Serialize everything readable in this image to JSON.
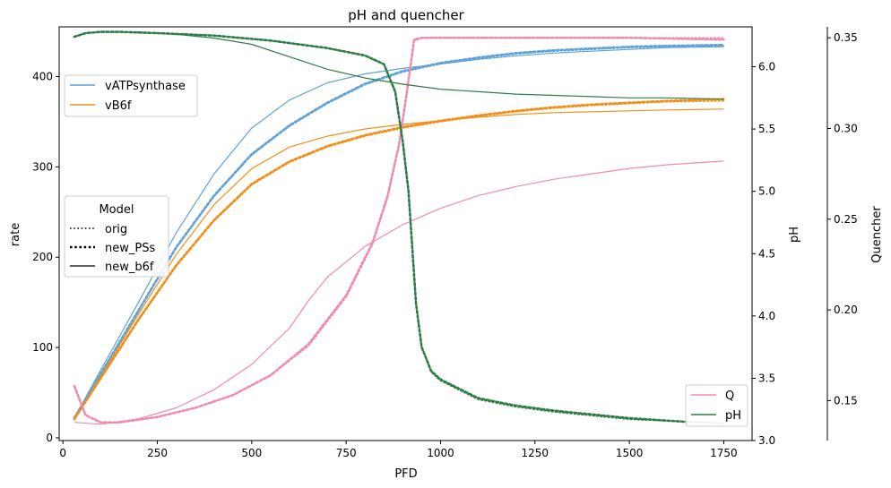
{
  "chart_data": {
    "type": "line",
    "title": "pH and quencher",
    "xlabel": "PFD",
    "x_axis": {
      "lim": [
        -10,
        1825
      ],
      "ticks": [
        0,
        250,
        500,
        750,
        1000,
        1250,
        1500,
        1750
      ]
    },
    "axes": {
      "rate": {
        "label": "rate",
        "lim": [
          -3,
          455
        ],
        "ticks": [
          0,
          100,
          200,
          300,
          400
        ]
      },
      "pH": {
        "label": "pH",
        "lim": [
          3.0,
          6.32
        ],
        "ticks": [
          3.0,
          3.5,
          4.0,
          4.5,
          5.0,
          5.5,
          6.0
        ]
      },
      "quencher": {
        "label": "Quencher",
        "lim": [
          0.128,
          0.356
        ],
        "ticks": [
          0.15,
          0.2,
          0.25,
          0.3,
          0.35
        ]
      }
    },
    "legends": {
      "rates": {
        "placement": "upper-left",
        "entries": [
          {
            "label": "vATPsynthase",
            "color": "#5fa2d8"
          },
          {
            "label": "vB6f",
            "color": "#f28e16"
          }
        ]
      },
      "model": {
        "title": "Model",
        "placement": "center-left",
        "entries": [
          {
            "label": "orig",
            "style": "dotted"
          },
          {
            "label": "new_PSs",
            "style": "dotted-bold"
          },
          {
            "label": "new_b6f",
            "style": "solid"
          }
        ]
      },
      "quench_ph": {
        "placement": "lower-right",
        "entries": [
          {
            "label": "Q",
            "color": "#ef8bb0"
          },
          {
            "label": "pH",
            "color": "#2e7d46"
          }
        ]
      }
    },
    "series": [
      {
        "name": "vATPsynthase",
        "model": "orig",
        "axis": "rate",
        "color": "#5fa2d8",
        "style": "dotted",
        "x": [
          30,
          100,
          200,
          300,
          400,
          500,
          600,
          700,
          800,
          900,
          1000,
          1100,
          1200,
          1300,
          1400,
          1500,
          1600,
          1750
        ],
        "y": [
          22,
          70,
          140,
          210,
          267,
          313,
          345,
          370,
          391,
          405,
          414,
          420,
          425,
          428,
          430,
          432,
          433,
          434
        ]
      },
      {
        "name": "vATPsynthase",
        "model": "new_PSs",
        "axis": "rate",
        "color": "#5fa2d8",
        "style": "dotted-bold",
        "x": [
          30,
          100,
          200,
          300,
          400,
          500,
          600,
          700,
          800,
          900,
          1000,
          1100,
          1200,
          1300,
          1400,
          1500,
          1600,
          1750
        ],
        "y": [
          22,
          71,
          141,
          211,
          268,
          314,
          346,
          371,
          392,
          406,
          415,
          421,
          426,
          429,
          431,
          433,
          434,
          435
        ]
      },
      {
        "name": "vATPsynthase",
        "model": "new_b6f",
        "axis": "rate",
        "color": "#5fa2d8",
        "style": "solid",
        "x": [
          30,
          100,
          200,
          300,
          400,
          500,
          600,
          700,
          800,
          900,
          1000,
          1100,
          1200,
          1300,
          1400,
          1500,
          1600,
          1750
        ],
        "y": [
          22,
          75,
          150,
          227,
          292,
          343,
          374,
          393,
          403,
          409,
          414,
          419,
          423,
          426,
          428,
          430,
          432,
          433
        ]
      },
      {
        "name": "vB6f",
        "model": "orig",
        "axis": "rate",
        "color": "#f28e16",
        "style": "dotted",
        "x": [
          30,
          100,
          200,
          300,
          400,
          500,
          600,
          700,
          800,
          900,
          1000,
          1100,
          1200,
          1300,
          1400,
          1500,
          1600,
          1750
        ],
        "y": [
          20,
          65,
          130,
          190,
          240,
          280,
          305,
          322,
          334,
          343,
          350,
          356,
          361,
          365,
          368,
          370,
          372,
          373
        ]
      },
      {
        "name": "vB6f",
        "model": "new_PSs",
        "axis": "rate",
        "color": "#f28e16",
        "style": "dotted-bold",
        "x": [
          30,
          100,
          200,
          300,
          400,
          500,
          600,
          700,
          800,
          900,
          1000,
          1100,
          1200,
          1300,
          1400,
          1500,
          1600,
          1750
        ],
        "y": [
          21,
          66,
          131,
          191,
          241,
          281,
          306,
          323,
          335,
          344,
          351,
          357,
          362,
          366,
          369,
          371,
          373,
          375
        ]
      },
      {
        "name": "vB6f",
        "model": "new_b6f",
        "axis": "rate",
        "color": "#f28e16",
        "style": "solid",
        "x": [
          30,
          100,
          200,
          300,
          400,
          500,
          600,
          700,
          800,
          900,
          1000,
          1100,
          1200,
          1300,
          1400,
          1500,
          1600,
          1750
        ],
        "y": [
          20,
          68,
          137,
          203,
          258,
          298,
          322,
          334,
          342,
          347,
          351,
          355,
          358,
          360,
          361,
          362,
          363,
          364
        ]
      },
      {
        "name": "Q",
        "model": "orig",
        "axis": "quencher",
        "color": "#ef8bb0",
        "style": "dotted",
        "x": [
          30,
          60,
          100,
          150,
          250,
          350,
          450,
          550,
          650,
          750,
          820,
          860,
          890,
          910,
          930,
          950,
          1000,
          1200,
          1500,
          1750
        ],
        "y": [
          0.158,
          0.142,
          0.138,
          0.138,
          0.141,
          0.146,
          0.153,
          0.164,
          0.18,
          0.207,
          0.236,
          0.262,
          0.29,
          0.318,
          0.348,
          0.35,
          0.35,
          0.35,
          0.35,
          0.35
        ]
      },
      {
        "name": "Q",
        "model": "new_PSs",
        "axis": "quencher",
        "color": "#ef8bb0",
        "style": "dotted-bold",
        "x": [
          30,
          60,
          100,
          150,
          250,
          350,
          450,
          550,
          650,
          750,
          820,
          860,
          890,
          910,
          930,
          950,
          1000,
          1200,
          1500,
          1750
        ],
        "y": [
          0.158,
          0.142,
          0.138,
          0.138,
          0.141,
          0.146,
          0.153,
          0.164,
          0.181,
          0.208,
          0.237,
          0.263,
          0.291,
          0.319,
          0.349,
          0.35,
          0.35,
          0.35,
          0.35,
          0.349
        ]
      },
      {
        "name": "Q",
        "model": "new_b6f",
        "axis": "quencher",
        "color": "#ef8bb0",
        "style": "solid",
        "x": [
          30,
          100,
          200,
          300,
          400,
          500,
          600,
          650,
          700,
          800,
          900,
          1000,
          1100,
          1200,
          1300,
          1400,
          1500,
          1600,
          1750
        ],
        "y": [
          0.138,
          0.137,
          0.14,
          0.146,
          0.156,
          0.17,
          0.19,
          0.205,
          0.218,
          0.235,
          0.247,
          0.256,
          0.263,
          0.268,
          0.272,
          0.275,
          0.278,
          0.28,
          0.282
        ]
      },
      {
        "name": "pH",
        "model": "orig",
        "axis": "pH",
        "color": "#2e7d46",
        "style": "dotted",
        "x": [
          30,
          60,
          100,
          150,
          250,
          400,
          550,
          700,
          800,
          850,
          880,
          900,
          915,
          925,
          935,
          950,
          975,
          1000,
          1100,
          1200,
          1300,
          1500,
          1750
        ],
        "y": [
          6.24,
          6.27,
          6.28,
          6.28,
          6.27,
          6.25,
          6.21,
          6.15,
          6.09,
          6.02,
          5.8,
          5.4,
          5.0,
          4.55,
          4.1,
          3.75,
          3.55,
          3.48,
          3.33,
          3.27,
          3.23,
          3.17,
          3.14
        ]
      },
      {
        "name": "pH",
        "model": "new_PSs",
        "axis": "pH",
        "color": "#2e7d46",
        "style": "dotted-bold",
        "x": [
          30,
          60,
          100,
          150,
          250,
          400,
          550,
          700,
          800,
          850,
          880,
          900,
          915,
          925,
          935,
          950,
          975,
          1000,
          1100,
          1200,
          1300,
          1500,
          1650
        ],
        "y": [
          6.24,
          6.27,
          6.28,
          6.28,
          6.27,
          6.25,
          6.21,
          6.15,
          6.09,
          6.02,
          5.8,
          5.4,
          5.0,
          4.55,
          4.1,
          3.75,
          3.56,
          3.49,
          3.34,
          3.28,
          3.24,
          3.18,
          3.15
        ]
      },
      {
        "name": "pH",
        "model": "new_b6f",
        "axis": "pH",
        "color": "#2e7d46",
        "style": "solid",
        "x": [
          30,
          60,
          100,
          150,
          200,
          300,
          400,
          500,
          600,
          700,
          800,
          900,
          1000,
          1100,
          1200,
          1300,
          1400,
          1500,
          1600,
          1750
        ],
        "y": [
          6.24,
          6.27,
          6.28,
          6.28,
          6.28,
          6.26,
          6.23,
          6.18,
          6.08,
          5.98,
          5.91,
          5.86,
          5.82,
          5.8,
          5.78,
          5.77,
          5.76,
          5.75,
          5.75,
          5.74
        ]
      }
    ]
  }
}
